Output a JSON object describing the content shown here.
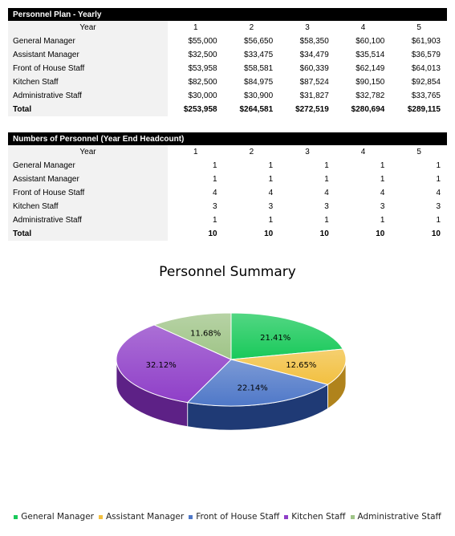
{
  "plan": {
    "title": "Personnel Plan - Yearly",
    "year_label": "Year",
    "years": [
      "1",
      "2",
      "3",
      "4",
      "5"
    ],
    "rows": [
      {
        "label": "General Manager",
        "values": [
          "$55,000",
          "$56,650",
          "$58,350",
          "$60,100",
          "$61,903"
        ]
      },
      {
        "label": "Assistant Manager",
        "values": [
          "$32,500",
          "$33,475",
          "$34,479",
          "$35,514",
          "$36,579"
        ]
      },
      {
        "label": "Front of House Staff",
        "values": [
          "$53,958",
          "$58,581",
          "$60,339",
          "$62,149",
          "$64,013"
        ]
      },
      {
        "label": "Kitchen Staff",
        "values": [
          "$82,500",
          "$84,975",
          "$87,524",
          "$90,150",
          "$92,854"
        ]
      },
      {
        "label": "Administrative Staff",
        "values": [
          "$30,000",
          "$30,900",
          "$31,827",
          "$32,782",
          "$33,765"
        ]
      }
    ],
    "total": {
      "label": "Total",
      "values": [
        "$253,958",
        "$264,581",
        "$272,519",
        "$280,694",
        "$289,115"
      ]
    }
  },
  "headcount": {
    "title": "Numbers of Personnel (Year End Headcount)",
    "year_label": "Year",
    "years": [
      "1",
      "2",
      "3",
      "4",
      "5"
    ],
    "rows": [
      {
        "label": "General Manager",
        "values": [
          "1",
          "1",
          "1",
          "1",
          "1"
        ]
      },
      {
        "label": "Assistant Manager",
        "values": [
          "1",
          "1",
          "1",
          "1",
          "1"
        ]
      },
      {
        "label": "Front of House Staff",
        "values": [
          "4",
          "4",
          "4",
          "4",
          "4"
        ]
      },
      {
        "label": "Kitchen Staff",
        "values": [
          "3",
          "3",
          "3",
          "3",
          "3"
        ]
      },
      {
        "label": "Administrative Staff",
        "values": [
          "1",
          "1",
          "1",
          "1",
          "1"
        ]
      }
    ],
    "total": {
      "label": "Total",
      "values": [
        "10",
        "10",
        "10",
        "10",
        "10"
      ]
    }
  },
  "chart_data": {
    "type": "pie",
    "title": "Personnel Summary",
    "categories": [
      "General Manager",
      "Assistant Manager",
      "Front of House Staff",
      "Kitchen Staff",
      "Administrative Staff"
    ],
    "values": [
      21.41,
      12.65,
      22.14,
      32.12,
      11.68
    ],
    "labels": [
      "21.41%",
      "12.65%",
      "22.14%",
      "32.12%",
      "11.68%"
    ],
    "colors": [
      "#19c95a",
      "#f2c040",
      "#4f78c8",
      "#8f3fc8",
      "#9fc487"
    ],
    "side_colors": [
      "#0e8a3c",
      "#b0831c",
      "#1f3a75",
      "#5d2186",
      "#6f8f5c"
    ],
    "legend_position": "bottom",
    "style": "3d"
  }
}
